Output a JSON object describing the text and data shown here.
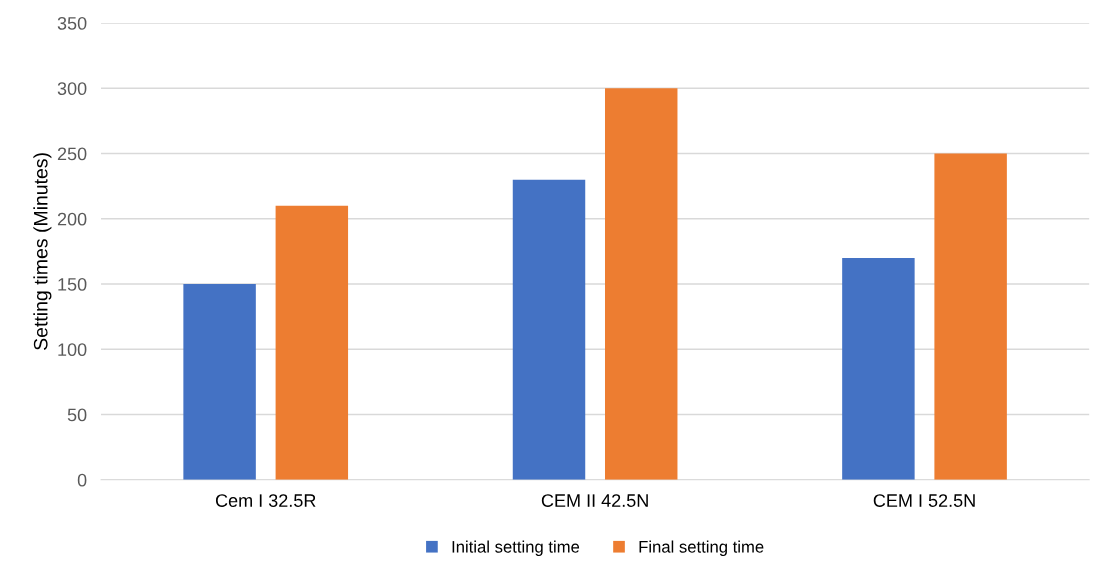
{
  "chart_data": {
    "type": "bar",
    "ylabel": "Setting times (Minutes)",
    "categories": [
      "Cem I 32.5R",
      "CEM II 42.5N",
      "CEM I 52.5N"
    ],
    "series": [
      {
        "name": "Initial setting time",
        "color": "#4472c4",
        "values": [
          150,
          230,
          170
        ]
      },
      {
        "name": "Final setting time",
        "color": "#ed7d31",
        "values": [
          210,
          300,
          250
        ]
      }
    ],
    "ylim": [
      0,
      350
    ],
    "yticks": [
      0,
      50,
      100,
      150,
      200,
      250,
      300,
      350
    ],
    "grid": "y",
    "legend": "bottom"
  }
}
